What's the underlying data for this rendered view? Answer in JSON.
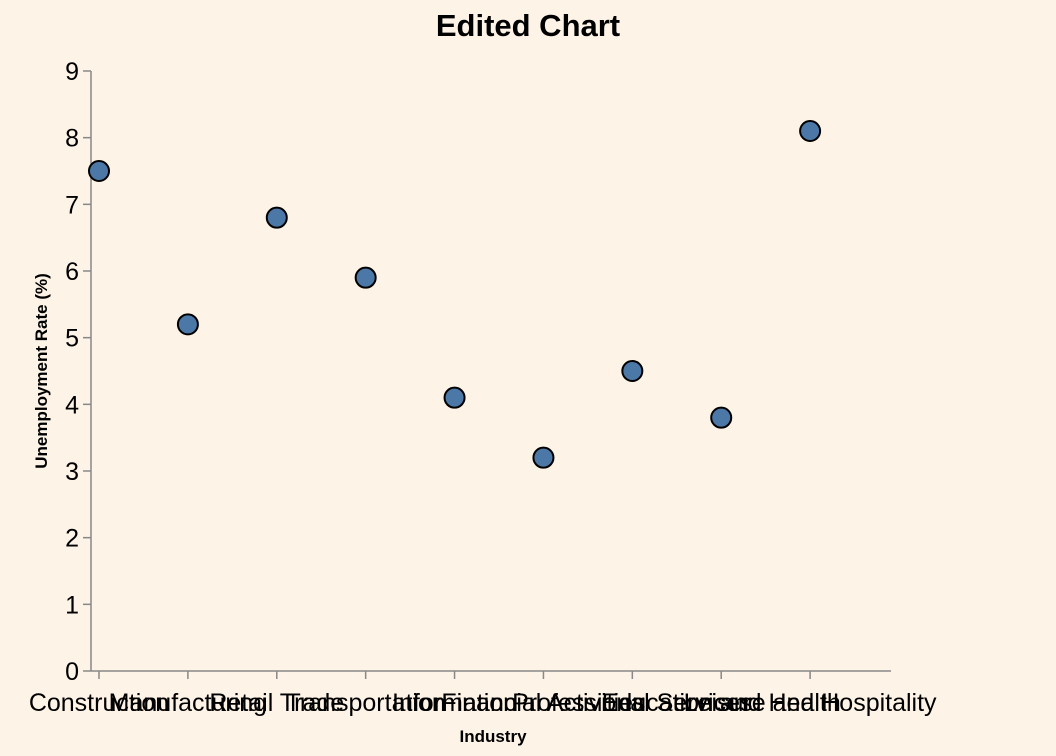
{
  "chart_data": {
    "type": "scatter",
    "title": "Edited Chart",
    "xlabel": "Industry",
    "ylabel": "Unemployment Rate (%)",
    "ylim": [
      0,
      9
    ],
    "yticks": [
      0,
      1,
      2,
      3,
      4,
      5,
      6,
      7,
      8,
      9
    ],
    "grid": false,
    "categories": [
      "Construction",
      "Manufacturing",
      "Retail Trade",
      "Transportation",
      "Information",
      "Financial Activities",
      "Professional Services",
      "Education and Health",
      "Leisure and Hospitality"
    ],
    "values": [
      7.5,
      5.2,
      6.8,
      5.9,
      4.1,
      3.2,
      4.5,
      3.8,
      8.1
    ],
    "colors": {
      "point_fill": "#4c78a8",
      "point_stroke": "#000000",
      "background": "#fdf3e6"
    }
  }
}
